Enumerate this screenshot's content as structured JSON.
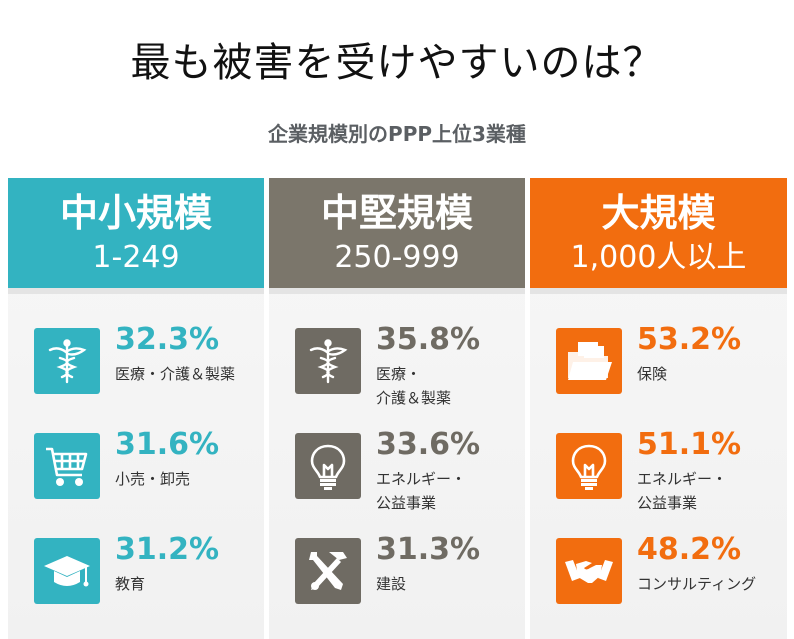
{
  "title": "最も被害を受けやすいのは？",
  "subtitle": "企業規模別のPPP上位3業種",
  "columns": [
    {
      "name": "中小規模",
      "range": "1-249",
      "color": "#33b3c1",
      "items": [
        {
          "icon": "caduceus-icon",
          "pct": "32.3%",
          "label": "医療・介護＆製薬"
        },
        {
          "icon": "shopping-cart-icon",
          "pct": "31.6%",
          "label": "小売・卸売"
        },
        {
          "icon": "graduation-cap-icon",
          "pct": "31.2%",
          "label": "教育"
        }
      ]
    },
    {
      "name": "中堅規模",
      "range": "250-999",
      "color": "#7b766b",
      "items": [
        {
          "icon": "caduceus-icon",
          "pct": "35.8%",
          "label": "医療・\n介護＆製薬"
        },
        {
          "icon": "lightbulb-icon",
          "pct": "33.6%",
          "label": "エネルギー・\n公益事業"
        },
        {
          "icon": "tools-icon",
          "pct": "31.3%",
          "label": "建設"
        }
      ]
    },
    {
      "name": "大規模",
      "range": "1,000人以上",
      "color": "#f26d0f",
      "items": [
        {
          "icon": "folder-icon",
          "pct": "53.2%",
          "label": "保険"
        },
        {
          "icon": "lightbulb-icon",
          "pct": "51.1%",
          "label": "エネルギー・\n公益事業"
        },
        {
          "icon": "handshake-icon",
          "pct": "48.2%",
          "label": "コンサルティング"
        }
      ]
    }
  ]
}
